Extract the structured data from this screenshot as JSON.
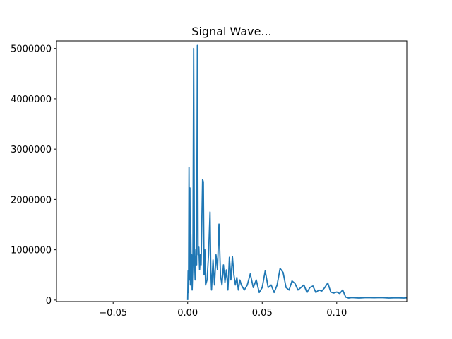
{
  "chart_data": {
    "type": "line",
    "title": "Signal Wave...",
    "xlabel": "",
    "ylabel": "",
    "xlim": [
      -0.088,
      0.147
    ],
    "ylim": [
      -30000,
      5150000
    ],
    "grid": false,
    "xticks": [
      {
        "value": -0.05,
        "label": "−0.05"
      },
      {
        "value": 0.0,
        "label": "0.00"
      },
      {
        "value": 0.05,
        "label": "0.05"
      },
      {
        "value": 0.1,
        "label": "0.10"
      }
    ],
    "yticks": [
      {
        "value": 0,
        "label": "0"
      },
      {
        "value": 1000000,
        "label": "1000000"
      },
      {
        "value": 2000000,
        "label": "2000000"
      },
      {
        "value": 3000000,
        "label": "3000000"
      },
      {
        "value": 4000000,
        "label": "4000000"
      },
      {
        "value": 5000000,
        "label": "5000000"
      }
    ],
    "series": [
      {
        "color": "#1f77b4",
        "points": [
          [
            0.0,
            0
          ],
          [
            0.0003,
            580000
          ],
          [
            0.0006,
            150000
          ],
          [
            0.0009,
            2640000
          ],
          [
            0.0012,
            400000
          ],
          [
            0.0015,
            2230000
          ],
          [
            0.0018,
            300000
          ],
          [
            0.0021,
            1300000
          ],
          [
            0.0024,
            500000
          ],
          [
            0.0027,
            900000
          ],
          [
            0.003,
            200000
          ],
          [
            0.0035,
            700000
          ],
          [
            0.004,
            5000000
          ],
          [
            0.0045,
            900000
          ],
          [
            0.005,
            400000
          ],
          [
            0.0055,
            1000000
          ],
          [
            0.006,
            700000
          ],
          [
            0.0065,
            5060000
          ],
          [
            0.007,
            900000
          ],
          [
            0.0075,
            1050000
          ],
          [
            0.008,
            600000
          ],
          [
            0.0085,
            900000
          ],
          [
            0.009,
            700000
          ],
          [
            0.01,
            2400000
          ],
          [
            0.0105,
            2350000
          ],
          [
            0.011,
            500000
          ],
          [
            0.0115,
            1000000
          ],
          [
            0.012,
            300000
          ],
          [
            0.013,
            400000
          ],
          [
            0.014,
            900000
          ],
          [
            0.015,
            1750000
          ],
          [
            0.0155,
            600000
          ],
          [
            0.016,
            200000
          ],
          [
            0.017,
            800000
          ],
          [
            0.018,
            300000
          ],
          [
            0.019,
            900000
          ],
          [
            0.02,
            600000
          ],
          [
            0.021,
            1510000
          ],
          [
            0.022,
            500000
          ],
          [
            0.023,
            300000
          ],
          [
            0.024,
            700000
          ],
          [
            0.025,
            350000
          ],
          [
            0.026,
            600000
          ],
          [
            0.027,
            200000
          ],
          [
            0.028,
            850000
          ],
          [
            0.029,
            400000
          ],
          [
            0.03,
            870000
          ],
          [
            0.031,
            500000
          ],
          [
            0.032,
            300000
          ],
          [
            0.033,
            450000
          ],
          [
            0.034,
            200000
          ],
          [
            0.035,
            400000
          ],
          [
            0.036,
            300000
          ],
          [
            0.038,
            200000
          ],
          [
            0.04,
            300000
          ],
          [
            0.042,
            520000
          ],
          [
            0.044,
            250000
          ],
          [
            0.046,
            400000
          ],
          [
            0.048,
            150000
          ],
          [
            0.05,
            250000
          ],
          [
            0.052,
            580000
          ],
          [
            0.054,
            250000
          ],
          [
            0.056,
            300000
          ],
          [
            0.058,
            150000
          ],
          [
            0.06,
            300000
          ],
          [
            0.062,
            630000
          ],
          [
            0.064,
            550000
          ],
          [
            0.066,
            250000
          ],
          [
            0.068,
            200000
          ],
          [
            0.07,
            380000
          ],
          [
            0.072,
            330000
          ],
          [
            0.074,
            200000
          ],
          [
            0.076,
            250000
          ],
          [
            0.078,
            300000
          ],
          [
            0.08,
            150000
          ],
          [
            0.082,
            250000
          ],
          [
            0.084,
            280000
          ],
          [
            0.086,
            150000
          ],
          [
            0.088,
            200000
          ],
          [
            0.09,
            180000
          ],
          [
            0.092,
            250000
          ],
          [
            0.094,
            340000
          ],
          [
            0.096,
            160000
          ],
          [
            0.098,
            140000
          ],
          [
            0.1,
            160000
          ],
          [
            0.102,
            130000
          ],
          [
            0.104,
            200000
          ],
          [
            0.106,
            60000
          ],
          [
            0.108,
            40000
          ],
          [
            0.11,
            50000
          ],
          [
            0.115,
            40000
          ],
          [
            0.12,
            50000
          ],
          [
            0.125,
            45000
          ],
          [
            0.13,
            50000
          ],
          [
            0.135,
            40000
          ],
          [
            0.14,
            45000
          ],
          [
            0.145,
            40000
          ],
          [
            0.147,
            45000
          ]
        ]
      }
    ]
  }
}
